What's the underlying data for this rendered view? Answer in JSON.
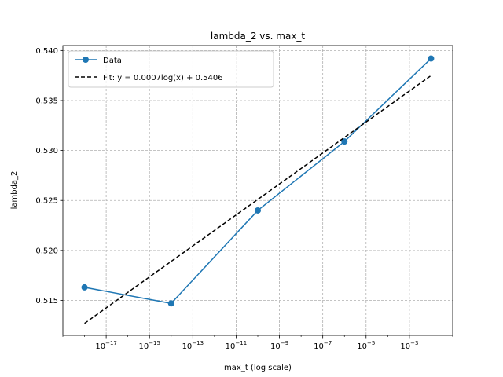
{
  "chart_data": {
    "type": "line",
    "title": "lambda_2 vs. max_t",
    "xlabel": "max_t (log scale)",
    "ylabel": "lambda_2",
    "xscale": "log",
    "xlim": [
      1e-19,
      0.1
    ],
    "ylim": [
      0.5115,
      0.5405
    ],
    "x_ticks": [
      {
        "value": 1e-17,
        "base": "10",
        "exp": "−17"
      },
      {
        "value": 1e-15,
        "base": "10",
        "exp": "−15"
      },
      {
        "value": 1e-13,
        "base": "10",
        "exp": "−13"
      },
      {
        "value": 1e-11,
        "base": "10",
        "exp": "−11"
      },
      {
        "value": 1e-09,
        "base": "10",
        "exp": "−9"
      },
      {
        "value": 1e-07,
        "base": "10",
        "exp": "−7"
      },
      {
        "value": 1e-05,
        "base": "10",
        "exp": "−5"
      },
      {
        "value": 0.001,
        "base": "10",
        "exp": "−3"
      }
    ],
    "y_ticks": [
      "0.515",
      "0.520",
      "0.525",
      "0.530",
      "0.535",
      "0.540"
    ],
    "grid": true,
    "legend_position": "upper-left",
    "series": [
      {
        "name": "Data",
        "style": "solid-with-markers",
        "color": "#1f77b4",
        "points": [
          {
            "x": 1e-18,
            "y": 0.5163
          },
          {
            "x": 1e-14,
            "y": 0.5147
          },
          {
            "x": 1e-10,
            "y": 0.524
          },
          {
            "x": 1e-06,
            "y": 0.5309
          },
          {
            "x": 0.01,
            "y": 0.5392
          }
        ]
      },
      {
        "name": "Fit: y = 0.0007log(x) + 0.5406",
        "style": "dashed",
        "color": "#000000",
        "points": [
          {
            "x": 1e-18,
            "y": 0.5127
          },
          {
            "x": 0.01,
            "y": 0.5375
          }
        ]
      }
    ]
  }
}
